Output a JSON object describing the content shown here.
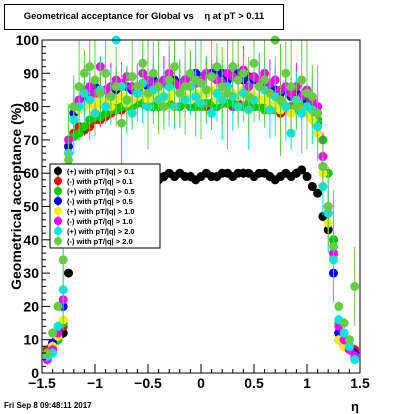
{
  "title": "Geometrical acceptance for Global vs    η at pT > 0.11",
  "footer": "Fri Sep  8 09:48:11 2017",
  "chart_data": {
    "type": "scatter",
    "title": "Geometrical acceptance for Global vs    η at pT > 0.11",
    "xlabel": "η",
    "ylabel": "Geometrical acceptance (%)",
    "xlim": [
      -1.5,
      1.5
    ],
    "ylim": [
      0,
      100
    ],
    "xticks": [
      -1.5,
      -1,
      -0.5,
      0,
      0.5,
      1,
      1.5
    ],
    "yticks": [
      0,
      10,
      20,
      30,
      40,
      50,
      60,
      70,
      80,
      90,
      100
    ],
    "x_tick_labels": [
      "−1.5",
      "−1",
      "−0.5",
      "0",
      "0.5",
      "1",
      "1.5"
    ],
    "legend_position": "middle-left",
    "series": [
      {
        "name": "(+) with pT/|q| > 0.1",
        "color": "#000000",
        "plateau": 59.5,
        "err": 0.6,
        "x": [
          -1.45,
          -1.4,
          -1.35,
          -1.3,
          -1.25,
          -1.2,
          -1.15,
          -1.1,
          -1.05,
          -1.0,
          -0.95,
          -0.9,
          -0.85,
          -0.8,
          -0.75,
          -0.7,
          -0.65,
          -0.6,
          -0.55,
          -0.5,
          -0.45,
          -0.4,
          -0.35,
          -0.3,
          -0.25,
          -0.2,
          -0.15,
          -0.1,
          -0.05,
          0.0,
          0.05,
          0.1,
          0.15,
          0.2,
          0.25,
          0.3,
          0.35,
          0.4,
          0.45,
          0.5,
          0.55,
          0.6,
          0.65,
          0.7,
          0.75,
          0.8,
          0.85,
          0.9,
          0.95,
          1.0,
          1.05,
          1.1,
          1.15,
          1.2,
          1.25,
          1.3,
          1.35,
          1.4,
          1.45
        ],
        "y": [
          6,
          8,
          10,
          12,
          30,
          56,
          58,
          59,
          60,
          59,
          59,
          60,
          59,
          60,
          59,
          60,
          59,
          59,
          60,
          60,
          59,
          58,
          59,
          60,
          59,
          60,
          59,
          59,
          58,
          59,
          60,
          59,
          59,
          60,
          60,
          59,
          60,
          60,
          60,
          59,
          60,
          60,
          59,
          58,
          59,
          60,
          59,
          60,
          61,
          59,
          56,
          54,
          47,
          43,
          35,
          10,
          8,
          7,
          6
        ]
      },
      {
        "name": "(-) with pT/|q| > 0.1",
        "color": "#ff0000",
        "plateau": 80,
        "err": 1,
        "x": [
          -1.45,
          -1.4,
          -1.35,
          -1.3,
          -1.25,
          -1.2,
          -1.15,
          -1.1,
          -1.05,
          -1.0,
          -0.95,
          -0.9,
          -0.85,
          -0.8,
          -0.75,
          -0.7,
          -0.65,
          -0.6,
          -0.55,
          -0.5,
          -0.45,
          -0.4,
          -0.35,
          -0.3,
          -0.25,
          -0.2,
          -0.15,
          -0.1,
          -0.05,
          0.0,
          0.05,
          0.1,
          0.15,
          0.2,
          0.25,
          0.3,
          0.35,
          0.4,
          0.45,
          0.5,
          0.55,
          0.6,
          0.65,
          0.7,
          0.75,
          0.8,
          0.85,
          0.9,
          0.95,
          1.0,
          1.05,
          1.1,
          1.15,
          1.2,
          1.25,
          1.3,
          1.35,
          1.4,
          1.45
        ],
        "y": [
          7,
          9,
          11,
          14,
          58,
          72,
          74,
          73,
          74,
          76,
          76,
          77,
          78,
          80,
          79,
          80,
          80,
          81,
          81,
          80,
          80,
          81,
          80,
          81,
          80,
          80,
          81,
          80,
          80,
          81,
          80,
          81,
          80,
          81,
          81,
          80,
          81,
          80,
          81,
          80,
          80,
          80,
          79,
          80,
          78,
          79,
          80,
          79,
          80,
          80,
          79,
          75,
          65,
          50,
          40,
          12,
          9,
          8,
          7
        ]
      },
      {
        "name": "(+) with pT/|q| > 0.5",
        "color": "#00cc00",
        "plateau": 80,
        "err": 1,
        "x": [
          -1.45,
          -1.4,
          -1.35,
          -1.3,
          -1.25,
          -1.2,
          -1.15,
          -1.1,
          -1.05,
          -1.0,
          -0.95,
          -0.9,
          -0.85,
          -0.8,
          -0.75,
          -0.7,
          -0.65,
          -0.6,
          -0.55,
          -0.5,
          -0.45,
          -0.4,
          -0.35,
          -0.3,
          -0.25,
          -0.2,
          -0.15,
          -0.1,
          -0.05,
          0.0,
          0.05,
          0.1,
          0.15,
          0.2,
          0.25,
          0.3,
          0.35,
          0.4,
          0.45,
          0.5,
          0.55,
          0.6,
          0.65,
          0.7,
          0.75,
          0.8,
          0.85,
          0.9,
          0.95,
          1.0,
          1.05,
          1.1,
          1.15,
          1.2,
          1.25,
          1.3,
          1.35,
          1.4,
          1.45
        ],
        "y": [
          5,
          7,
          10,
          15,
          62,
          71,
          72,
          74,
          76,
          77,
          77,
          78,
          79,
          79,
          80,
          80,
          80,
          81,
          81,
          80,
          80,
          80,
          81,
          81,
          80,
          80,
          81,
          80,
          80,
          80,
          81,
          81,
          80,
          81,
          81,
          81,
          80,
          80,
          81,
          80,
          80,
          79,
          80,
          79,
          80,
          80,
          79,
          80,
          80,
          78,
          78,
          76,
          70,
          60,
          40,
          15,
          10,
          8,
          6
        ]
      },
      {
        "name": "(-) with pT/|q| > 0.5",
        "color": "#0000ff",
        "plateau": 84,
        "err": 2,
        "x": [
          -1.45,
          -1.4,
          -1.35,
          -1.3,
          -1.25,
          -1.2,
          -1.15,
          -1.1,
          -1.05,
          -1.0,
          -0.95,
          -0.9,
          -0.85,
          -0.8,
          -0.75,
          -0.7,
          -0.65,
          -0.6,
          -0.55,
          -0.5,
          -0.45,
          -0.4,
          -0.35,
          -0.3,
          -0.25,
          -0.2,
          -0.15,
          -0.1,
          -0.05,
          0.0,
          0.05,
          0.1,
          0.15,
          0.2,
          0.25,
          0.3,
          0.35,
          0.4,
          0.45,
          0.5,
          0.55,
          0.6,
          0.65,
          0.7,
          0.75,
          0.8,
          0.85,
          0.9,
          0.95,
          1.0,
          1.05,
          1.1,
          1.15,
          1.2,
          1.25,
          1.3,
          1.35,
          1.4,
          1.45
        ],
        "y": [
          6,
          9,
          12,
          20,
          68,
          78,
          81,
          83,
          84,
          86,
          84,
          85,
          86,
          85,
          87,
          86,
          85,
          86,
          87,
          86,
          88,
          87,
          87,
          86,
          88,
          87,
          88,
          89,
          90,
          89,
          90,
          90,
          91,
          90,
          88,
          89,
          90,
          88,
          89,
          88,
          88,
          87,
          86,
          85,
          84,
          85,
          83,
          84,
          83,
          82,
          80,
          78,
          62,
          48,
          30,
          12,
          10,
          8,
          6
        ]
      },
      {
        "name": "(+) with pT/|q| > 1.0",
        "color": "#ffee00",
        "plateau": 80,
        "err": 2,
        "x": [
          -1.45,
          -1.4,
          -1.35,
          -1.3,
          -1.25,
          -1.2,
          -1.15,
          -1.1,
          -1.05,
          -1.0,
          -0.95,
          -0.9,
          -0.85,
          -0.8,
          -0.75,
          -0.7,
          -0.65,
          -0.6,
          -0.55,
          -0.5,
          -0.45,
          -0.4,
          -0.35,
          -0.3,
          -0.25,
          -0.2,
          -0.15,
          -0.1,
          -0.05,
          0.0,
          0.05,
          0.1,
          0.15,
          0.2,
          0.25,
          0.3,
          0.35,
          0.4,
          0.45,
          0.5,
          0.55,
          0.6,
          0.65,
          0.7,
          0.75,
          0.8,
          0.85,
          0.9,
          0.95,
          1.0,
          1.05,
          1.1,
          1.15,
          1.2,
          1.25,
          1.3,
          1.35,
          1.4,
          1.45
        ],
        "y": [
          5,
          8,
          11,
          16,
          66,
          76,
          79,
          80,
          81,
          80,
          82,
          81,
          80,
          82,
          83,
          81,
          82,
          83,
          84,
          82,
          83,
          84,
          82,
          83,
          85,
          84,
          83,
          82,
          84,
          83,
          84,
          85,
          82,
          83,
          84,
          84,
          83,
          85,
          84,
          83,
          82,
          82,
          80,
          81,
          79,
          80,
          78,
          80,
          79,
          78,
          76,
          72,
          60,
          45,
          35,
          10,
          8,
          7,
          5
        ]
      },
      {
        "name": "(-) with pT/|q| > 1.0",
        "color": "#ff00ff",
        "plateau": 86,
        "err": 3,
        "x": [
          -1.45,
          -1.4,
          -1.35,
          -1.3,
          -1.25,
          -1.2,
          -1.15,
          -1.1,
          -1.05,
          -1.0,
          -0.95,
          -0.9,
          -0.85,
          -0.8,
          -0.75,
          -0.7,
          -0.65,
          -0.6,
          -0.55,
          -0.5,
          -0.45,
          -0.4,
          -0.35,
          -0.3,
          -0.25,
          -0.2,
          -0.15,
          -0.1,
          -0.05,
          0.0,
          0.05,
          0.1,
          0.15,
          0.2,
          0.25,
          0.3,
          0.35,
          0.4,
          0.45,
          0.5,
          0.55,
          0.6,
          0.65,
          0.7,
          0.75,
          0.8,
          0.85,
          0.9,
          0.95,
          1.0,
          1.05,
          1.1,
          1.15,
          1.2,
          1.25,
          1.3,
          1.35,
          1.4,
          1.45
        ],
        "y": [
          4,
          7,
          12,
          22,
          70,
          80,
          82,
          85,
          86,
          84,
          92,
          85,
          86,
          88,
          87,
          89,
          86,
          85,
          90,
          88,
          86,
          87,
          88,
          90,
          87,
          86,
          88,
          89,
          87,
          88,
          90,
          89,
          88,
          87,
          90,
          89,
          88,
          91,
          86,
          89,
          88,
          90,
          87,
          88,
          85,
          86,
          84,
          86,
          83,
          85,
          82,
          80,
          65,
          50,
          36,
          14,
          10,
          7,
          5
        ]
      },
      {
        "name": "(+) with pT/|q| > 2.0",
        "color": "#00e5e5",
        "plateau": 82,
        "err": 5,
        "x": [
          -1.45,
          -1.4,
          -1.35,
          -1.3,
          -1.25,
          -1.2,
          -1.15,
          -1.1,
          -1.05,
          -1.0,
          -0.95,
          -0.9,
          -0.85,
          -0.8,
          -0.75,
          -0.7,
          -0.65,
          -0.6,
          -0.55,
          -0.5,
          -0.45,
          -0.4,
          -0.35,
          -0.3,
          -0.25,
          -0.2,
          -0.15,
          -0.1,
          -0.05,
          0.0,
          0.05,
          0.1,
          0.15,
          0.2,
          0.25,
          0.3,
          0.35,
          0.4,
          0.45,
          0.5,
          0.55,
          0.6,
          0.65,
          0.7,
          0.75,
          0.8,
          0.85,
          0.9,
          0.95,
          1.0,
          1.05,
          1.1,
          1.15,
          1.2,
          1.25,
          1.3,
          1.35,
          1.4,
          1.45
        ],
        "y": [
          5,
          6,
          14,
          25,
          66,
          76,
          80,
          84,
          82,
          78,
          85,
          80,
          83,
          100,
          86,
          82,
          78,
          84,
          87,
          80,
          85,
          82,
          83,
          86,
          80,
          84,
          82,
          86,
          83,
          81,
          85,
          78,
          84,
          82,
          86,
          83,
          80,
          84,
          79,
          82,
          86,
          85,
          79,
          83,
          82,
          80,
          72,
          82,
          78,
          80,
          79,
          74,
          56,
          48,
          34,
          16,
          12,
          8,
          4
        ]
      },
      {
        "name": "(-) with pT/|q| > 2.0",
        "color": "#66cc44",
        "plateau": 86,
        "err": 7,
        "x": [
          -1.45,
          -1.4,
          -1.35,
          -1.3,
          -1.25,
          -1.2,
          -1.15,
          -1.1,
          -1.05,
          -1.0,
          -0.95,
          -0.9,
          -0.85,
          -0.8,
          -0.75,
          -0.7,
          -0.65,
          -0.6,
          -0.55,
          -0.5,
          -0.45,
          -0.4,
          -0.35,
          -0.3,
          -0.25,
          -0.2,
          -0.15,
          -0.1,
          -0.05,
          0.0,
          0.05,
          0.1,
          0.15,
          0.2,
          0.25,
          0.3,
          0.35,
          0.4,
          0.45,
          0.5,
          0.55,
          0.6,
          0.65,
          0.7,
          0.75,
          0.8,
          0.85,
          0.9,
          0.95,
          1.0,
          1.05,
          1.1,
          1.15,
          1.2,
          1.25,
          1.3,
          1.35,
          1.4,
          1.45
        ],
        "y": [
          6,
          12,
          20,
          34,
          64,
          80,
          86,
          90,
          92,
          88,
          84,
          90,
          83,
          86,
          75,
          82,
          89,
          86,
          93,
          84,
          90,
          86,
          80,
          88,
          92,
          84,
          86,
          90,
          88,
          87,
          85,
          89,
          92,
          86,
          84,
          92,
          88,
          90,
          83,
          93,
          86,
          88,
          84,
          100,
          82,
          90,
          86,
          80,
          88,
          84,
          83,
          78,
          62,
          50,
          38,
          20,
          15,
          10,
          26
        ]
      }
    ]
  }
}
